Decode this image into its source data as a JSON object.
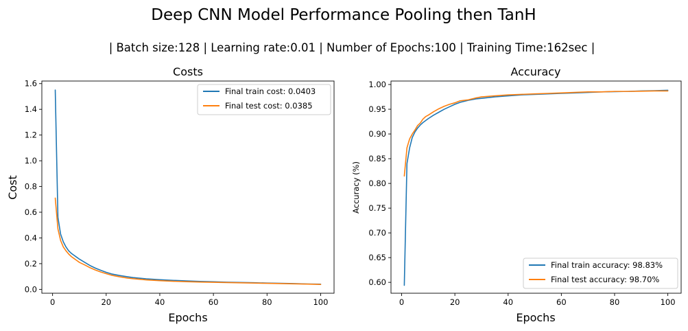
{
  "figure": {
    "title": "Deep CNN Model Performance Pooling then TanH",
    "subtitle": "| Batch size:128 | Learning rate:0.01 | Number of Epochs:100 | Training Time:162sec |"
  },
  "chart_data": [
    {
      "type": "line",
      "title": "Costs",
      "xlabel": "Epochs",
      "ylabel": "Cost",
      "xlim": [
        -4,
        105
      ],
      "ylim": [
        -0.03,
        1.62
      ],
      "xticks": [
        0,
        20,
        40,
        60,
        80,
        100
      ],
      "yticks": [
        0.0,
        0.2,
        0.4,
        0.6,
        0.8,
        1.0,
        1.2,
        1.4,
        1.6
      ],
      "ytick_labels": [
        "0.0",
        "0.2",
        "0.4",
        "0.6",
        "0.8",
        "1.0",
        "1.2",
        "1.4",
        "1.6"
      ],
      "grid": false,
      "legend_position": "upper-right",
      "series": [
        {
          "name": "Final train cost: 0.0403",
          "color": "#1f77b4",
          "x": [
            1,
            2,
            3,
            4,
            5,
            6,
            7,
            8,
            9,
            10,
            12,
            14,
            16,
            18,
            20,
            22,
            25,
            28,
            30,
            35,
            40,
            45,
            50,
            55,
            60,
            65,
            70,
            75,
            80,
            85,
            90,
            95,
            100
          ],
          "y": [
            1.55,
            0.56,
            0.43,
            0.37,
            0.33,
            0.3,
            0.28,
            0.265,
            0.25,
            0.235,
            0.21,
            0.185,
            0.165,
            0.148,
            0.133,
            0.12,
            0.108,
            0.098,
            0.092,
            0.082,
            0.075,
            0.07,
            0.066,
            0.062,
            0.059,
            0.056,
            0.054,
            0.052,
            0.049,
            0.047,
            0.045,
            0.042,
            0.0403
          ]
        },
        {
          "name": "Final test cost: 0.0385",
          "color": "#ff7f0e",
          "x": [
            1,
            2,
            3,
            4,
            5,
            6,
            7,
            8,
            9,
            10,
            12,
            14,
            16,
            18,
            20,
            22,
            25,
            28,
            30,
            35,
            40,
            45,
            50,
            55,
            60,
            65,
            70,
            75,
            80,
            85,
            90,
            95,
            100
          ],
          "y": [
            0.71,
            0.47,
            0.38,
            0.33,
            0.3,
            0.275,
            0.255,
            0.24,
            0.225,
            0.21,
            0.19,
            0.168,
            0.15,
            0.135,
            0.122,
            0.11,
            0.098,
            0.088,
            0.083,
            0.074,
            0.068,
            0.063,
            0.06,
            0.057,
            0.055,
            0.053,
            0.051,
            0.049,
            0.047,
            0.045,
            0.043,
            0.041,
            0.0385
          ]
        }
      ]
    },
    {
      "type": "line",
      "title": "Accuracy",
      "xlabel": "Epochs",
      "ylabel": "Accuracy (%)",
      "xlim": [
        -4,
        105
      ],
      "ylim": [
        0.578,
        1.007
      ],
      "xticks": [
        0,
        20,
        40,
        60,
        80,
        100
      ],
      "yticks": [
        0.6,
        0.65,
        0.7,
        0.75,
        0.8,
        0.85,
        0.9,
        0.95,
        1.0
      ],
      "ytick_labels": [
        "0.60",
        "0.65",
        "0.70",
        "0.75",
        "0.80",
        "0.85",
        "0.90",
        "0.95",
        "1.00"
      ],
      "grid": false,
      "legend_position": "lower-right",
      "series": [
        {
          "name": "Final train accuracy: 98.83%",
          "color": "#1f77b4",
          "x": [
            1,
            2,
            3,
            4,
            5,
            6,
            7,
            8,
            9,
            10,
            12,
            14,
            16,
            18,
            20,
            22,
            25,
            28,
            30,
            35,
            40,
            45,
            50,
            55,
            60,
            65,
            70,
            75,
            80,
            85,
            90,
            95,
            100
          ],
          "y": [
            0.594,
            0.84,
            0.872,
            0.893,
            0.904,
            0.912,
            0.918,
            0.923,
            0.927,
            0.931,
            0.938,
            0.944,
            0.95,
            0.955,
            0.96,
            0.964,
            0.968,
            0.971,
            0.972,
            0.975,
            0.977,
            0.979,
            0.98,
            0.981,
            0.982,
            0.983,
            0.984,
            0.985,
            0.9855,
            0.986,
            0.987,
            0.9875,
            0.9883
          ]
        },
        {
          "name": "Final test accuracy: 98.70%",
          "color": "#ff7f0e",
          "x": [
            1,
            2,
            3,
            4,
            5,
            6,
            7,
            8,
            9,
            10,
            12,
            14,
            16,
            18,
            20,
            22,
            25,
            28,
            30,
            35,
            40,
            45,
            50,
            55,
            60,
            65,
            70,
            75,
            80,
            85,
            90,
            95,
            100
          ],
          "y": [
            0.815,
            0.872,
            0.89,
            0.9,
            0.908,
            0.917,
            0.922,
            0.93,
            0.935,
            0.938,
            0.945,
            0.951,
            0.956,
            0.96,
            0.963,
            0.967,
            0.969,
            0.973,
            0.975,
            0.977,
            0.979,
            0.98,
            0.981,
            0.982,
            0.983,
            0.984,
            0.985,
            0.985,
            0.986,
            0.986,
            0.9865,
            0.987,
            0.987
          ]
        }
      ]
    }
  ]
}
